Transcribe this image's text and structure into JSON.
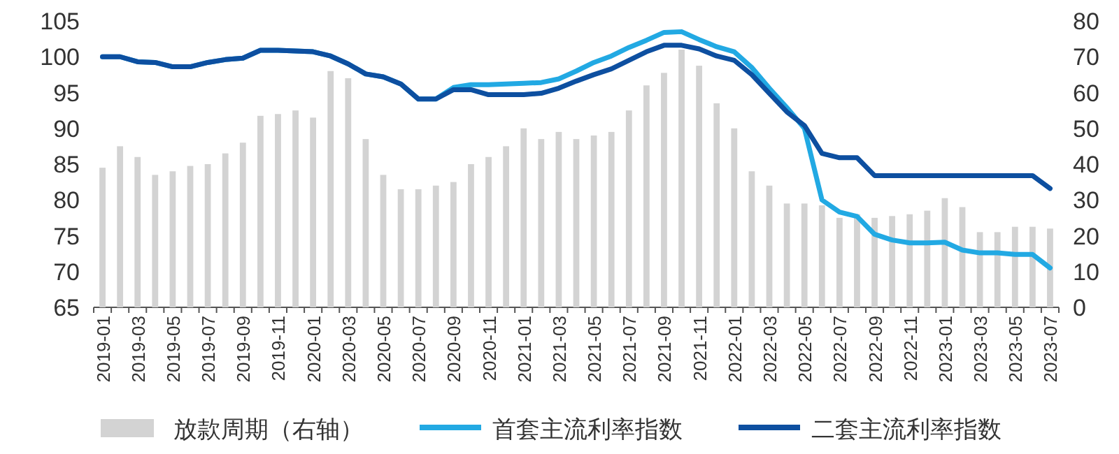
{
  "chart_data": {
    "type": "bar",
    "categories": [
      "2019-01",
      null,
      "2019-03",
      null,
      "2019-05",
      null,
      "2019-07",
      null,
      "2019-09",
      null,
      "2019-11",
      null,
      "2020-01",
      null,
      "2020-03",
      null,
      "2020-05",
      null,
      "2020-07",
      null,
      "2020-09",
      null,
      "2020-11",
      null,
      "2021-01",
      null,
      "2021-03",
      null,
      "2021-05",
      null,
      "2021-07",
      null,
      "2021-09",
      null,
      "2021-11",
      null,
      "2022-01",
      null,
      "2022-03",
      null,
      "2022-05",
      null,
      "2022-07",
      null,
      "2022-09",
      null,
      "2022-11",
      null,
      "2023-01",
      null,
      "2023-03",
      null,
      "2023-05",
      null,
      "2023-07"
    ],
    "series": [
      {
        "name": "放款周期（右轴）",
        "axis": "y2",
        "color": "#d3d3d3",
        "values": [
          39,
          45,
          42,
          37,
          38,
          39.5,
          40,
          43,
          46,
          53.5,
          54,
          55,
          53,
          66,
          64,
          47,
          37,
          33,
          33,
          34,
          35,
          40,
          42,
          45,
          50,
          47,
          49,
          47,
          48,
          49,
          55,
          62,
          65.5,
          72,
          67.5,
          57,
          50,
          38,
          34,
          29,
          29,
          28.5,
          25,
          26,
          25,
          25.5,
          26,
          27,
          30.5,
          28,
          21,
          21,
          22.5,
          22.5,
          22
        ]
      },
      {
        "name": "首套主流利率指数",
        "type": "line",
        "color": "#22a9e3",
        "values": [
          100,
          100,
          99.3,
          99.2,
          98.6,
          98.6,
          99.2,
          99.6,
          99.8,
          100.9,
          100.9,
          100.8,
          100.7,
          100.1,
          99,
          97.6,
          97.2,
          96.2,
          94.1,
          94.1,
          95.7,
          96.1,
          96.1,
          96.2,
          96.3,
          96.4,
          96.9,
          98,
          99.2,
          100.1,
          101.3,
          102.3,
          103.4,
          103.5,
          102.4,
          101.4,
          100.7,
          98.5,
          95.6,
          92.9,
          90,
          80,
          78.3,
          77.7,
          75.2,
          74.4,
          74,
          74,
          74.1,
          73,
          72.6,
          72.6,
          72.4,
          72.4,
          70.5
        ]
      },
      {
        "name": "二套主流利率指数",
        "type": "line",
        "color": "#0d4fa0",
        "values": [
          100,
          100,
          99.3,
          99.2,
          98.6,
          98.6,
          99.2,
          99.6,
          99.8,
          100.9,
          100.9,
          100.8,
          100.7,
          100.1,
          99,
          97.6,
          97.2,
          96.2,
          94.1,
          94.1,
          95.4,
          95.4,
          94.7,
          94.7,
          94.7,
          94.9,
          95.6,
          96.6,
          97.5,
          98.3,
          99.5,
          100.7,
          101.6,
          101.6,
          101.1,
          100.1,
          99.5,
          97.5,
          94.9,
          92.3,
          90.4,
          86.5,
          85.9,
          85.9,
          83.4,
          83.4,
          83.4,
          83.4,
          83.4,
          83.4,
          83.4,
          83.4,
          83.4,
          83.4,
          81.6
        ]
      }
    ],
    "ylim": [
      65,
      105
    ],
    "yticks": [
      65,
      70,
      75,
      80,
      85,
      90,
      95,
      100,
      105
    ],
    "y2lim": [
      0,
      80
    ],
    "y2ticks": [
      0,
      10,
      20,
      30,
      40,
      50,
      60,
      70,
      80
    ],
    "legend": "bottom",
    "grid": false,
    "marker": "none"
  }
}
